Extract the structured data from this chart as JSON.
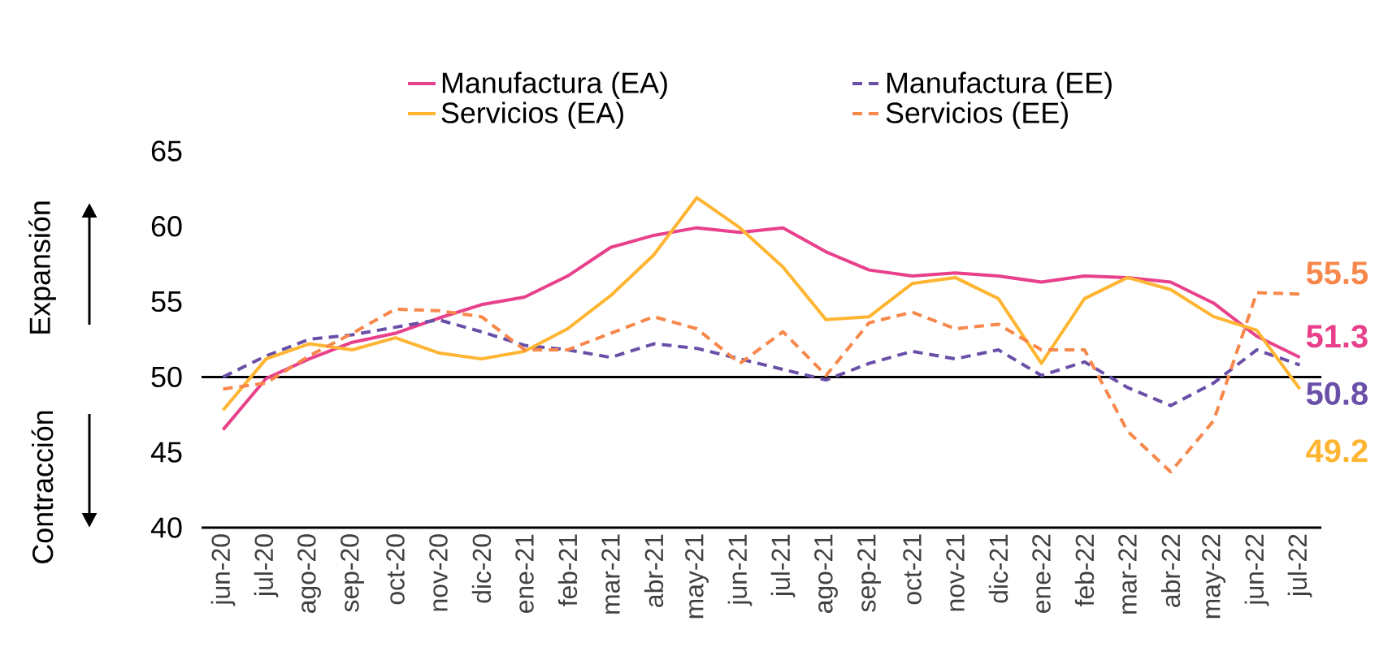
{
  "chart_data": {
    "type": "line",
    "categories": [
      "jun-20",
      "jul-20",
      "ago-20",
      "sep-20",
      "oct-20",
      "nov-20",
      "dic-20",
      "ene-21",
      "feb-21",
      "mar-21",
      "abr-21",
      "may-21",
      "jun-21",
      "jul-21",
      "ago-21",
      "sep-21",
      "oct-21",
      "nov-21",
      "dic-21",
      "ene-22",
      "feb-22",
      "mar-22",
      "abr-22",
      "may-22",
      "jun-22",
      "jul-22"
    ],
    "series": [
      {
        "name": "Manufactura (EA)",
        "color": "#e8408a",
        "line_style": "solid",
        "values": [
          46.5,
          49.9,
          51.2,
          52.3,
          52.9,
          53.9,
          54.8,
          55.3,
          56.7,
          58.6,
          59.4,
          59.9,
          59.6,
          59.9,
          58.3,
          57.1,
          56.7,
          56.9,
          56.7,
          56.3,
          56.7,
          56.6,
          56.3,
          54.9,
          52.7,
          51.3
        ],
        "value_labels": [
          null,
          null,
          null,
          null,
          null,
          null,
          null,
          null,
          null,
          null,
          null,
          null,
          null,
          null,
          null,
          null,
          null,
          null,
          null,
          null,
          null,
          null,
          null,
          null,
          null,
          "51.3"
        ]
      },
      {
        "name": "Manufactura (EE)",
        "color": "#6a4fa8",
        "line_style": "dashed",
        "values": [
          50.0,
          51.4,
          52.5,
          52.8,
          53.3,
          53.8,
          53.0,
          52.1,
          51.8,
          51.3,
          52.2,
          51.9,
          51.2,
          50.5,
          49.8,
          50.9,
          51.7,
          51.2,
          51.8,
          50.1,
          51.0,
          49.3,
          48.1,
          49.6,
          51.8,
          50.8
        ],
        "value_labels": [
          null,
          null,
          null,
          null,
          null,
          null,
          null,
          null,
          null,
          null,
          null,
          null,
          null,
          null,
          null,
          null,
          null,
          null,
          null,
          null,
          null,
          null,
          null,
          null,
          null,
          "50.8"
        ]
      },
      {
        "name": "Servicios (EA)",
        "color": "#ffb531",
        "line_style": "solid",
        "values": [
          47.8,
          51.2,
          52.2,
          51.8,
          52.6,
          51.6,
          51.2,
          51.7,
          53.2,
          55.4,
          58.1,
          61.9,
          59.9,
          57.3,
          53.8,
          54.0,
          56.2,
          56.6,
          55.2,
          50.9,
          55.2,
          56.6,
          55.8,
          54.0,
          53.1,
          49.2
        ],
        "value_labels": [
          null,
          null,
          null,
          null,
          null,
          null,
          null,
          null,
          null,
          null,
          null,
          null,
          null,
          null,
          null,
          null,
          null,
          null,
          null,
          null,
          null,
          null,
          null,
          null,
          null,
          "49.2"
        ]
      },
      {
        "name": "Servicios (EE)",
        "color": "#f7874a",
        "line_style": "dashed",
        "values": [
          49.2,
          49.6,
          51.4,
          52.9,
          54.5,
          54.4,
          54.0,
          51.8,
          51.8,
          52.9,
          54.0,
          53.2,
          50.9,
          53.0,
          50.1,
          53.6,
          54.3,
          53.2,
          53.5,
          51.8,
          51.8,
          46.4,
          43.7,
          47.1,
          55.6,
          55.5
        ],
        "value_labels": [
          null,
          null,
          null,
          null,
          null,
          null,
          null,
          null,
          null,
          null,
          null,
          null,
          null,
          null,
          null,
          null,
          null,
          null,
          null,
          null,
          null,
          null,
          null,
          null,
          null,
          "55.5"
        ]
      }
    ],
    "ylim": [
      40,
      65
    ],
    "yticks": [
      40,
      45,
      50,
      55,
      60,
      65
    ],
    "legend": "top",
    "marker": "none",
    "ref_lines": [
      {
        "axis": "y",
        "value": 50,
        "color": "#000000"
      }
    ],
    "annotations": [
      "Expansión",
      "Contracción"
    ]
  }
}
